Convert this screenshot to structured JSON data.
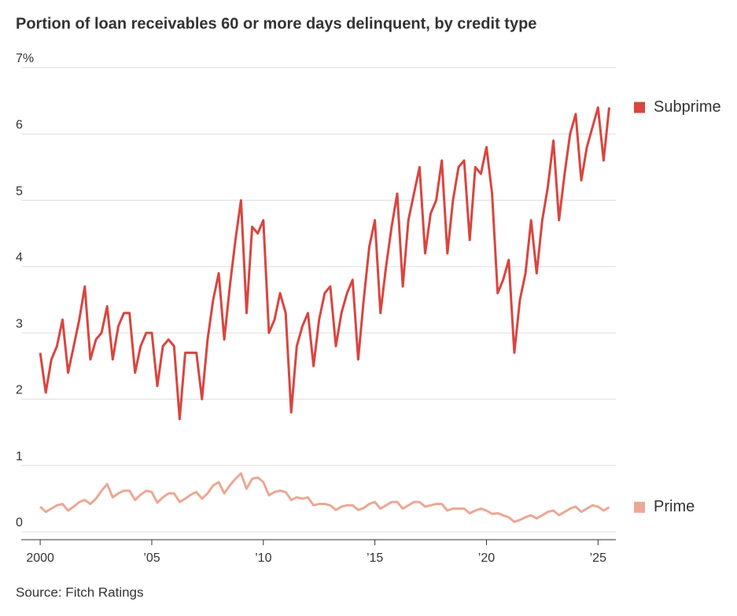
{
  "chart_data": {
    "type": "line",
    "title": "Portion of loan receivables 60 or more days delinquent, by credit type",
    "source": "Source: Fitch Ratings",
    "x": [
      2000,
      2000.25,
      2000.5,
      2000.75,
      2001,
      2001.25,
      2001.5,
      2001.75,
      2002,
      2002.25,
      2002.5,
      2002.75,
      2003,
      2003.25,
      2003.5,
      2003.75,
      2004,
      2004.25,
      2004.5,
      2004.75,
      2005,
      2005.25,
      2005.5,
      2005.75,
      2006,
      2006.25,
      2006.5,
      2006.75,
      2007,
      2007.25,
      2007.5,
      2007.75,
      2008,
      2008.25,
      2008.5,
      2008.75,
      2009,
      2009.25,
      2009.5,
      2009.75,
      2010,
      2010.25,
      2010.5,
      2010.75,
      2011,
      2011.25,
      2011.5,
      2011.75,
      2012,
      2012.25,
      2012.5,
      2012.75,
      2013,
      2013.25,
      2013.5,
      2013.75,
      2014,
      2014.25,
      2014.5,
      2014.75,
      2015,
      2015.25,
      2015.5,
      2015.75,
      2016,
      2016.25,
      2016.5,
      2016.75,
      2017,
      2017.25,
      2017.5,
      2017.75,
      2018,
      2018.25,
      2018.5,
      2018.75,
      2019,
      2019.25,
      2019.5,
      2019.75,
      2020,
      2020.25,
      2020.5,
      2020.75,
      2021,
      2021.25,
      2021.5,
      2021.75,
      2022,
      2022.25,
      2022.5,
      2022.75,
      2023,
      2023.25,
      2023.5,
      2023.75,
      2024,
      2024.25,
      2024.5,
      2024.75,
      2025,
      2025.25,
      2025.5
    ],
    "series": [
      {
        "name": "Subprime",
        "color": "#d9453f",
        "values": [
          2.7,
          2.1,
          2.6,
          2.8,
          3.2,
          2.4,
          2.8,
          3.2,
          3.7,
          2.6,
          2.9,
          3.0,
          3.4,
          2.6,
          3.1,
          3.3,
          3.3,
          2.4,
          2.8,
          3.0,
          3.0,
          2.2,
          2.8,
          2.9,
          2.8,
          1.7,
          2.7,
          2.7,
          2.7,
          2.0,
          2.9,
          3.5,
          3.9,
          2.9,
          3.7,
          4.4,
          5.0,
          3.3,
          4.6,
          4.5,
          4.7,
          3.0,
          3.2,
          3.6,
          3.3,
          1.8,
          2.8,
          3.1,
          3.3,
          2.5,
          3.2,
          3.6,
          3.7,
          2.8,
          3.3,
          3.6,
          3.8,
          2.6,
          3.5,
          4.3,
          4.7,
          3.3,
          4.0,
          4.6,
          5.1,
          3.7,
          4.7,
          5.1,
          5.5,
          4.2,
          4.8,
          5.0,
          5.6,
          4.2,
          5.0,
          5.5,
          5.6,
          4.4,
          5.5,
          5.4,
          5.8,
          5.1,
          3.6,
          3.8,
          4.1,
          2.7,
          3.5,
          3.9,
          4.7,
          3.9,
          4.7,
          5.2,
          5.9,
          4.7,
          5.4,
          6.0,
          6.3,
          5.3,
          5.8,
          6.1,
          6.4,
          5.6,
          6.4
        ]
      },
      {
        "name": "Prime",
        "color": "#eba894",
        "values": [
          0.38,
          0.3,
          0.35,
          0.4,
          0.42,
          0.32,
          0.38,
          0.45,
          0.48,
          0.42,
          0.5,
          0.62,
          0.72,
          0.52,
          0.58,
          0.62,
          0.62,
          0.48,
          0.56,
          0.62,
          0.6,
          0.44,
          0.52,
          0.58,
          0.58,
          0.45,
          0.5,
          0.56,
          0.6,
          0.5,
          0.58,
          0.7,
          0.75,
          0.58,
          0.7,
          0.8,
          0.88,
          0.65,
          0.8,
          0.82,
          0.75,
          0.55,
          0.6,
          0.62,
          0.6,
          0.48,
          0.52,
          0.5,
          0.52,
          0.4,
          0.42,
          0.42,
          0.4,
          0.33,
          0.38,
          0.4,
          0.4,
          0.33,
          0.36,
          0.42,
          0.45,
          0.35,
          0.4,
          0.45,
          0.45,
          0.35,
          0.4,
          0.45,
          0.45,
          0.38,
          0.4,
          0.42,
          0.42,
          0.32,
          0.35,
          0.35,
          0.35,
          0.28,
          0.32,
          0.35,
          0.32,
          0.27,
          0.28,
          0.25,
          0.22,
          0.15,
          0.18,
          0.22,
          0.25,
          0.2,
          0.25,
          0.3,
          0.32,
          0.25,
          0.3,
          0.35,
          0.38,
          0.3,
          0.35,
          0.4,
          0.38,
          0.32,
          0.37
        ]
      }
    ],
    "xlim": [
      1999.15,
      2025.8
    ],
    "xticks": [
      2000,
      {
        "value": 2005,
        "label": "’05"
      },
      {
        "value": 2010,
        "label": "’10"
      },
      {
        "value": 2015,
        "label": "’15"
      },
      {
        "value": 2020,
        "label": "’20"
      },
      {
        "value": 2025,
        "label": "’25"
      }
    ],
    "ylim": [
      0,
      7
    ],
    "yticks": [
      0,
      1,
      2,
      3,
      4,
      5,
      6,
      {
        "value": 7,
        "label": "7%"
      }
    ],
    "grid": true
  }
}
